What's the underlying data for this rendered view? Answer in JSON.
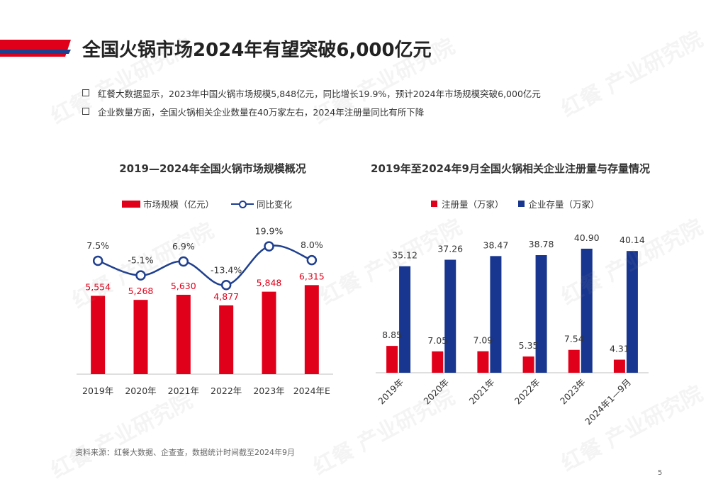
{
  "page_title": "全国火锅市场2024年有望突破6,000亿元",
  "bullets": [
    "红餐大数据显示，2023年中国火锅市场规模5,848亿元，同比增长19.9%，预计2024年市场规模突破6,000亿元",
    "企业数量方面，全国火锅相关企业数量在40万家左右，2024年注册量同比有所下降"
  ],
  "colors": {
    "red": "#e1001a",
    "blue": "#1f3f8f",
    "navy": "#18368f"
  },
  "chart_data": [
    {
      "type": "bar",
      "title": "2019—2024年全国火锅市场规模概况",
      "categories": [
        "2019年",
        "2020年",
        "2021年",
        "2022年",
        "2023年",
        "2024年E"
      ],
      "series": [
        {
          "name": "市场规模（亿元）",
          "type": "bar",
          "values": [
            5554,
            5268,
            5630,
            4877,
            5848,
            6315
          ],
          "labels": [
            "5,554",
            "5,268",
            "5,630",
            "4,877",
            "5,848",
            "6,315"
          ]
        },
        {
          "name": "同比变化",
          "type": "line",
          "values": [
            7.5,
            -5.1,
            6.9,
            -13.4,
            19.9,
            8.0
          ],
          "labels": [
            "7.5%",
            "-5.1%",
            "6.9%",
            "-13.4%",
            "19.9%",
            "8.0%"
          ]
        }
      ],
      "legend_position": "top"
    },
    {
      "type": "bar",
      "title": "2019年至2024年9月全国火锅相关企业注册量与存量情况",
      "categories": [
        "2019年",
        "2020年",
        "2021年",
        "2022年",
        "2023年",
        "2024年1—9月"
      ],
      "series": [
        {
          "name": "注册量（万家）",
          "values": [
            8.85,
            7.05,
            7.09,
            5.35,
            7.54,
            4.31
          ],
          "labels": [
            "8.85",
            "7.05",
            "7.09",
            "5.35",
            "7.54",
            "4.31"
          ]
        },
        {
          "name": "企业存量（万家）",
          "values": [
            35.12,
            37.26,
            38.47,
            38.78,
            40.9,
            40.14
          ],
          "labels": [
            "35.12",
            "37.26",
            "38.47",
            "38.78",
            "40.90",
            "40.14"
          ]
        }
      ],
      "legend_position": "top"
    }
  ],
  "source": "资料来源：红餐大数据、企查查，数据统计时间截至2024年9月",
  "page_number": "5",
  "watermark": "红餐 产业研究院"
}
